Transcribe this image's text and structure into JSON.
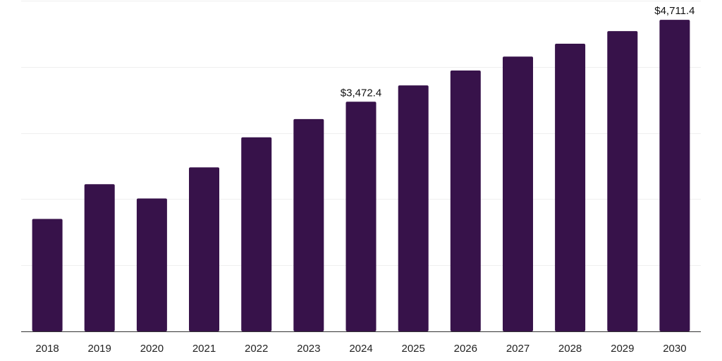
{
  "chart_data": {
    "type": "bar",
    "title": "",
    "xlabel": "",
    "ylabel": "",
    "categories": [
      "2018",
      "2019",
      "2020",
      "2021",
      "2022",
      "2023",
      "2024",
      "2025",
      "2026",
      "2027",
      "2028",
      "2029",
      "2030"
    ],
    "values": [
      1700,
      2225,
      2010,
      2480,
      2935,
      3210,
      3472.4,
      3720,
      3945,
      4155,
      4350,
      4540,
      4711.4
    ],
    "data_labels": [
      {
        "category": "2024",
        "text": "$3,472.4"
      },
      {
        "category": "2030",
        "text": "$4,711.4"
      }
    ],
    "ylim": [
      0,
      5000
    ],
    "y_gridlines": [
      0,
      1000,
      2000,
      3000,
      4000,
      5000
    ],
    "y_tick_labels_visible": false,
    "grid": true,
    "bar_color": "#37124a",
    "axis_color": "#333333",
    "grid_color": "#efefef"
  }
}
